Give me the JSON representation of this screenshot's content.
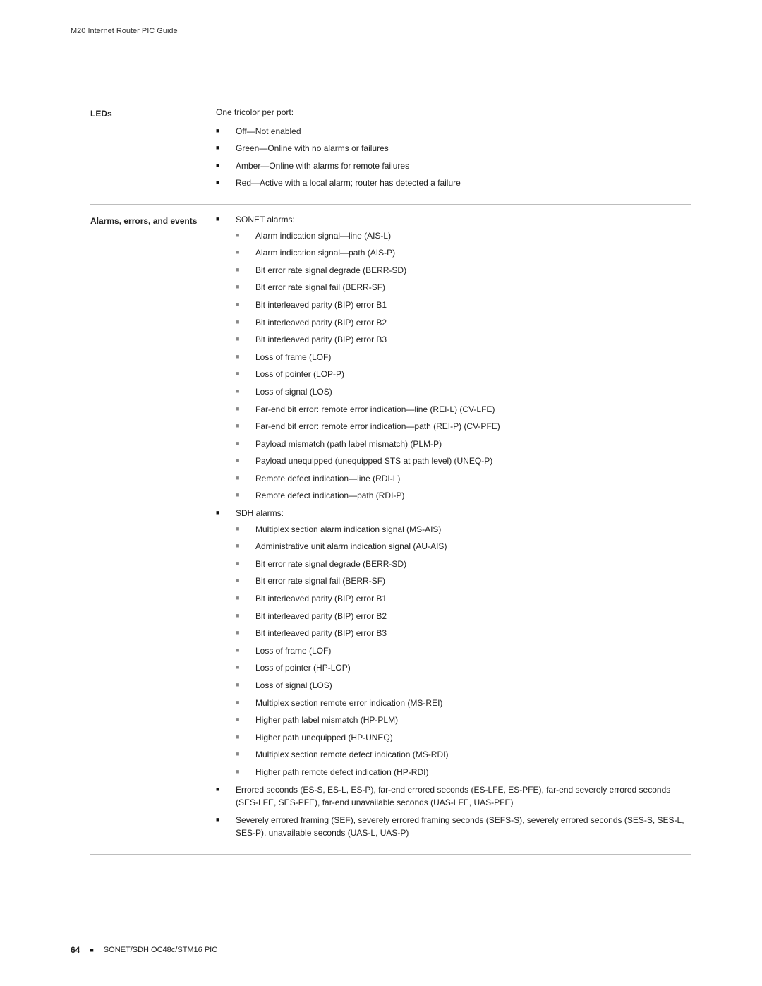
{
  "header": {
    "title": "M20 Internet Router PIC Guide"
  },
  "sections": {
    "leds": {
      "label": "LEDs",
      "intro": "One tricolor per port:",
      "items": [
        "Off—Not enabled",
        "Green—Online with no alarms or failures",
        "Amber—Online with alarms for remote failures",
        "Red—Active with a local alarm; router has detected a failure"
      ]
    },
    "alarms": {
      "label": "Alarms, errors, and events",
      "groups": [
        {
          "heading": "SONET alarms:",
          "subitems": [
            "Alarm indication signal—line (AIS-L)",
            "Alarm indication signal—path (AIS-P)",
            "Bit error rate signal degrade (BERR-SD)",
            "Bit error rate signal fail (BERR-SF)",
            "Bit interleaved parity (BIP) error B1",
            "Bit interleaved parity (BIP) error B2",
            "Bit interleaved parity (BIP) error B3",
            "Loss of frame (LOF)",
            "Loss of pointer (LOP-P)",
            "Loss of signal (LOS)",
            "Far-end bit error: remote error indication—line (REI-L) (CV-LFE)",
            "Far-end bit error: remote error indication—path (REI-P) (CV-PFE)",
            "Payload mismatch (path label mismatch) (PLM-P)",
            "Payload unequipped (unequipped STS at path level) (UNEQ-P)",
            "Remote defect indication—line (RDI-L)",
            "Remote defect indication—path (RDI-P)"
          ]
        },
        {
          "heading": "SDH alarms:",
          "subitems": [
            "Multiplex section alarm indication signal (MS-AIS)",
            "Administrative unit alarm indication signal (AU-AIS)",
            "Bit error rate signal degrade (BERR-SD)",
            "Bit error rate signal fail (BERR-SF)",
            "Bit interleaved parity (BIP) error B1",
            "Bit interleaved parity (BIP) error B2",
            "Bit interleaved parity (BIP) error B3",
            "Loss of frame (LOF)",
            "Loss of pointer (HP-LOP)",
            "Loss of signal (LOS)",
            "Multiplex section remote error indication (MS-REI)",
            "Higher path label mismatch (HP-PLM)",
            "Higher path unequipped (HP-UNEQ)",
            "Multiplex section remote defect indication (MS-RDI)",
            "Higher path remote defect indication (HP-RDI)"
          ]
        },
        {
          "heading": "Errored seconds (ES-S, ES-L, ES-P), far-end errored seconds (ES-LFE, ES-PFE), far-end severely errored seconds (SES-LFE, SES-PFE), far-end unavailable seconds (UAS-LFE, UAS-PFE)",
          "subitems": []
        },
        {
          "heading": "Severely errored framing (SEF), severely errored framing seconds (SEFS-S), severely errored seconds (SES-S, SES-L, SES-P), unavailable seconds (UAS-L, UAS-P)",
          "subitems": []
        }
      ]
    }
  },
  "footer": {
    "page": "64",
    "title": "SONET/SDH OC48c/STM16 PIC"
  }
}
